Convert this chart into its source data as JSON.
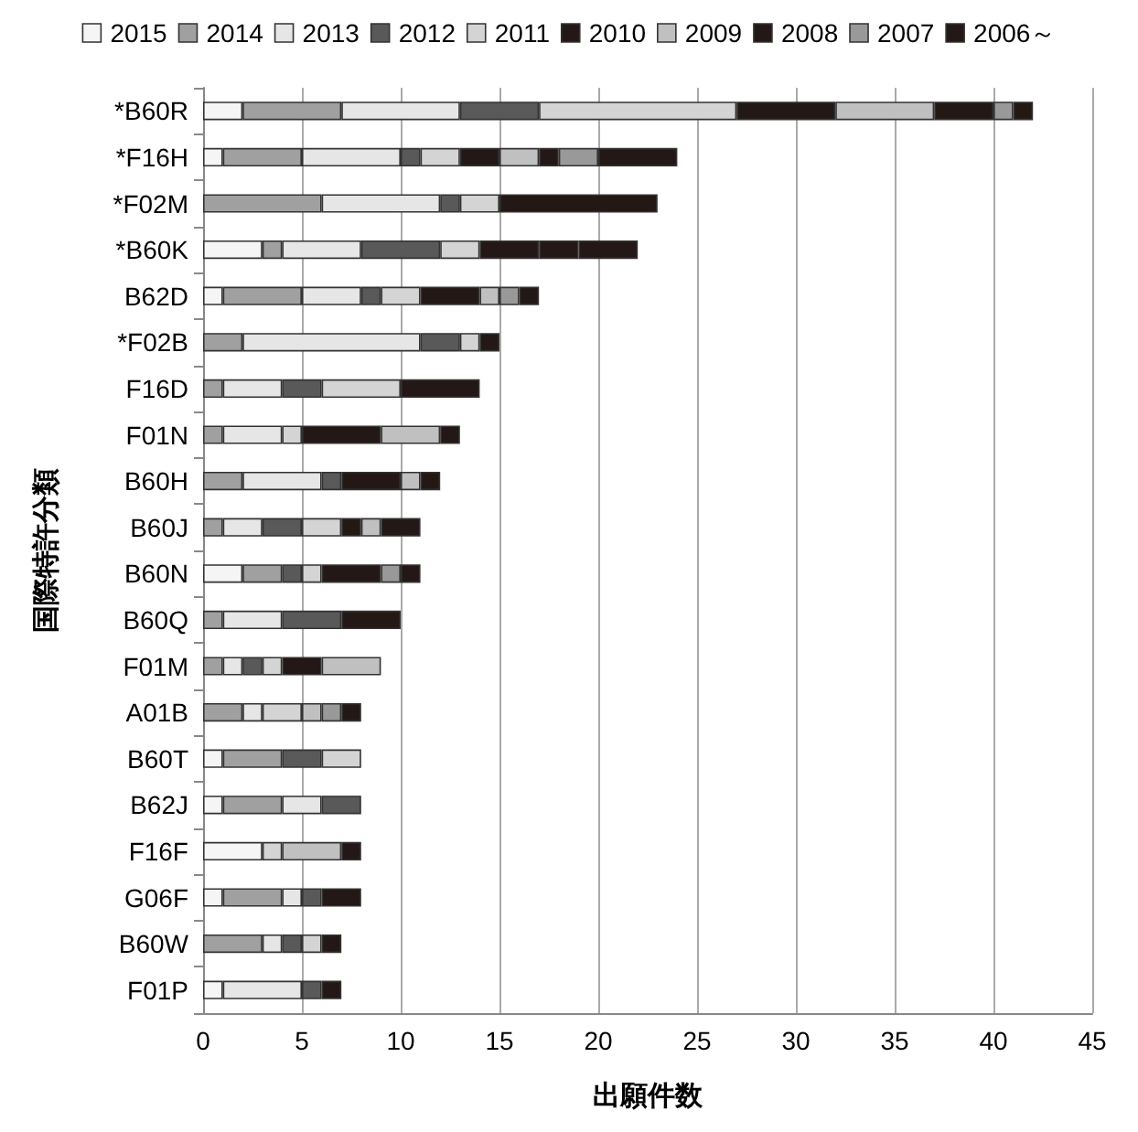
{
  "chart_data": {
    "type": "bar",
    "orientation": "horizontal",
    "stacked": true,
    "xlabel": "出願件数",
    "ylabel": "国際特許分類",
    "categories": [
      "*B60R",
      "*F16H",
      "*F02M",
      "*B60K",
      "B62D",
      "*F02B",
      "F16D",
      "F01N",
      "B60H",
      "B60J",
      "B60N",
      "B60Q",
      "F01M",
      "A01B",
      "B60T",
      "B62J",
      "F16F",
      "G06F",
      "B60W",
      "F01P"
    ],
    "series": [
      {
        "name": "2015",
        "color": "#f5f5f5",
        "values": [
          2,
          1,
          0,
          3,
          1,
          0,
          0,
          0,
          0,
          0,
          2,
          0,
          0,
          0,
          1,
          1,
          3,
          1,
          0,
          1
        ]
      },
      {
        "name": "2014",
        "color": "#a0a0a0",
        "values": [
          5,
          4,
          6,
          1,
          4,
          2,
          1,
          1,
          2,
          1,
          2,
          1,
          1,
          2,
          3,
          3,
          0,
          3,
          3,
          0
        ]
      },
      {
        "name": "2013",
        "color": "#e6e6e6",
        "values": [
          6,
          5,
          6,
          4,
          3,
          9,
          3,
          3,
          4,
          2,
          0,
          3,
          1,
          1,
          0,
          2,
          0,
          1,
          1,
          4
        ]
      },
      {
        "name": "2012",
        "color": "#595959",
        "values": [
          4,
          1,
          1,
          4,
          1,
          2,
          2,
          0,
          1,
          2,
          1,
          3,
          1,
          0,
          2,
          2,
          0,
          1,
          1,
          1
        ]
      },
      {
        "name": "2011",
        "color": "#d4d4d4",
        "values": [
          10,
          2,
          2,
          2,
          2,
          1,
          4,
          1,
          0,
          2,
          1,
          0,
          1,
          2,
          2,
          0,
          1,
          0,
          1,
          0
        ]
      },
      {
        "name": "2010",
        "color": "#231815",
        "values": [
          5,
          2,
          8,
          3,
          3,
          1,
          4,
          4,
          3,
          1,
          3,
          3,
          2,
          0,
          0,
          0,
          0,
          2,
          1,
          1
        ]
      },
      {
        "name": "2009",
        "color": "#c0c0c0",
        "values": [
          5,
          2,
          0,
          0,
          1,
          0,
          0,
          3,
          1,
          1,
          0,
          0,
          3,
          1,
          0,
          0,
          3,
          0,
          0,
          0
        ]
      },
      {
        "name": "2008",
        "color": "#231815",
        "values": [
          3,
          1,
          0,
          2,
          0,
          0,
          0,
          1,
          1,
          2,
          0,
          0,
          0,
          0,
          0,
          0,
          1,
          0,
          0,
          0
        ]
      },
      {
        "name": "2007",
        "color": "#999999",
        "values": [
          1,
          2,
          0,
          0,
          1,
          0,
          0,
          0,
          0,
          0,
          1,
          0,
          0,
          1,
          0,
          0,
          0,
          0,
          0,
          0
        ]
      },
      {
        "name": "2006～",
        "color": "#231815",
        "values": [
          1,
          4,
          0,
          3,
          1,
          0,
          0,
          0,
          0,
          0,
          1,
          0,
          0,
          1,
          0,
          0,
          0,
          0,
          0,
          0
        ]
      }
    ],
    "xlim": [
      0,
      45
    ],
    "xticks": [
      0,
      5,
      10,
      15,
      20,
      25,
      30,
      35,
      40,
      45
    ],
    "grid": "x",
    "legend": "top"
  }
}
